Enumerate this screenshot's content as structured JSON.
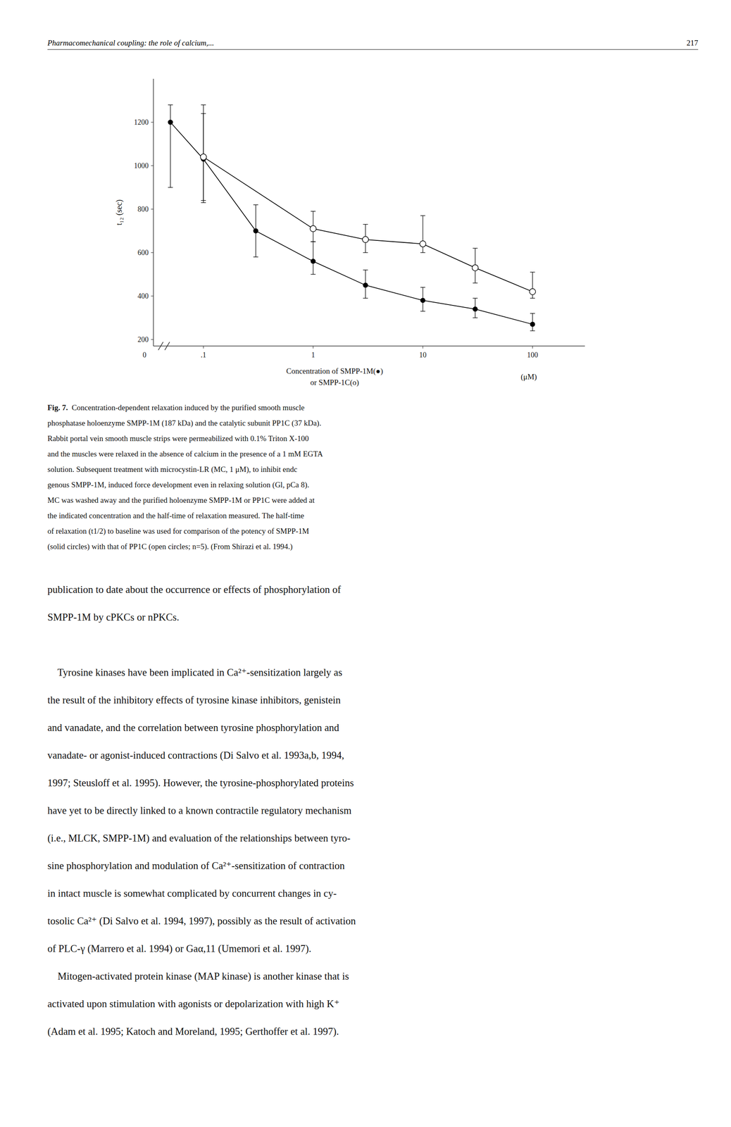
{
  "chart_data": {
    "type": "line",
    "log": "x",
    "grid": false,
    "xlabel": [
      "Concentration of SMPP-1M(●)",
      "or SMPP-1C(o)"
    ],
    "xlabel_unit": "(μM)",
    "ylabel": "t₁₂ (sec)",
    "annotations": [
      {
        "text": "0"
      }
    ],
    "xlim": [
      0.035,
      300
    ],
    "xticks": [
      {
        "value": 0.1,
        "label": ".1"
      },
      1,
      10,
      100
    ],
    "ylim": [
      170,
      1400
    ],
    "yticks": [
      200,
      400,
      600,
      800,
      1000,
      1200
    ],
    "series": [
      {
        "color": "black",
        "marker": "circle",
        "line_style": "solid",
        "x": [
          0.05,
          0.1,
          0.3,
          1.0,
          3.0,
          10.0,
          30.0,
          100.0
        ],
        "values": [
          1200,
          1030,
          700,
          560,
          450,
          380,
          340,
          270
        ],
        "error_upper": [
          80,
          250,
          120,
          90,
          70,
          60,
          50,
          50
        ],
        "error_lower": [
          300,
          200,
          120,
          60,
          60,
          50,
          40,
          30
        ]
      },
      {
        "color": "black",
        "marker": "open-circle",
        "line_style": "solid",
        "x": [
          0.1,
          1.0,
          3.0,
          10.0,
          30.0,
          100.0
        ],
        "values": [
          1040,
          710,
          660,
          640,
          530,
          420
        ],
        "error_upper": [
          200,
          80,
          70,
          130,
          90,
          90
        ],
        "error_lower": [
          200,
          60,
          60,
          40,
          70,
          30
        ]
      }
    ]
  },
  "page": {
    "header_left": "Pharmacomechanical coupling: the role of calcium,...",
    "header_right": "217",
    "caption_bold": "Fig. 7.",
    "caption_lines": [
      "  Concentration-dependent relaxation induced by the purified smooth muscle",
      "phosphatase holoenzyme SMPP-1M (187 kDa) and the catalytic subunit PP1C (37 kDa).",
      "Rabbit portal vein smooth muscle strips were permeabilized with 0.1% Triton X-100",
      "and the muscles were relaxed in the absence of calcium in the presence of a 1 mM EGTA",
      "solution. Subsequent treatment with microcystin-LR (MC, 1 μM), to inhibit endc­",
      "genous SMPP-1M, induced force development even in relaxing solution (Gl, pCa 8).",
      "MC was washed away and the purified holoenzyme SMPP-1M or PP1C were added at",
      "the indicated concentration and the half-time of relaxation measured. The half-time",
      "of relaxation (t1/2) to baseline was used for comparison of the potency of SMPP-1M",
      "(solid circles) with that of PP1C (open circles; n=5). (From Shirazi et al. 1994.)"
    ],
    "body": [
      [
        "publication to date about the occurrence or effects of phosphorylation of",
        "SMPP-1M by cPKCs or nPKCs."
      ],
      [
        "    Tyrosine kinases have been implicated in Ca²⁺-sensitization largely as",
        "the result of the inhibitory effects of tyrosine kinase inhibitors, genistein",
        "and vanadate, and the correlation between tyrosine phosphorylation and",
        "vanadate- or agonist-induced contractions (Di Salvo et al. 1993a,b, 1994,",
        "1997; Steusloff et al. 1995). However, the tyrosine-phosphorylated proteins",
        "have yet to be directly linked to a known contractile regulatory mechanism",
        "(i.e., MLCK, SMPP-1M) and evaluation of the relationships between tyro-",
        "sine phosphorylation and modulation of Ca²⁺-sensitization of contraction",
        "in intact muscle is somewhat complicated by concurrent changes in cy-",
        "tosolic Ca²⁺ (Di Salvo et al. 1994, 1997), possibly as the result of activation",
        "of PLC-γ (Marrero et al. 1994) or Gaα,11 (Umemori et al. 1997).",
        "    Mitogen-activated protein kinase (MAP kinase) is another kinase that is",
        "activated upon stimulation with agonists or depolarization with high K⁺",
        "(Adam et al. 1995; Katoch and Moreland, 1995; Gerthoffer et al. 1997)."
      ]
    ]
  }
}
